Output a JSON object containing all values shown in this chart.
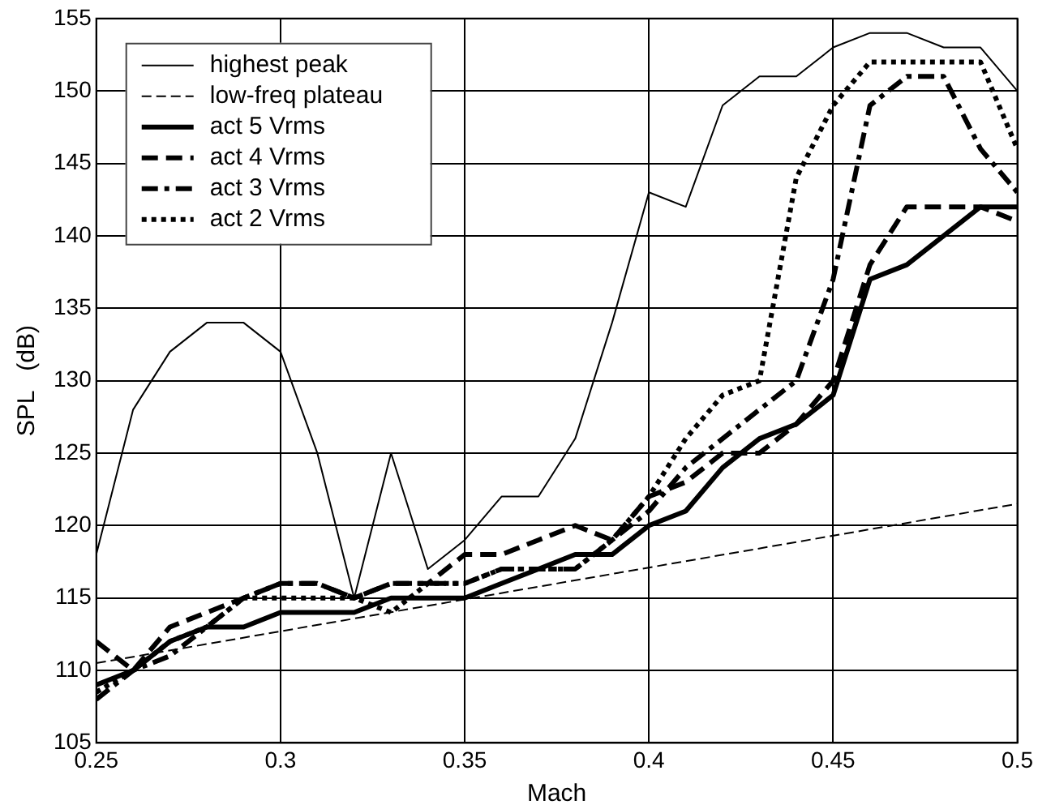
{
  "chart_data": {
    "type": "line",
    "xlabel": "Mach",
    "ylabel": "SPL   (dB)",
    "x": [
      0.25,
      0.26,
      0.27,
      0.28,
      0.29,
      0.3,
      0.31,
      0.32,
      0.33,
      0.34,
      0.35,
      0.36,
      0.37,
      0.38,
      0.39,
      0.4,
      0.41,
      0.42,
      0.43,
      0.44,
      0.45,
      0.46,
      0.47,
      0.48,
      0.49,
      0.5
    ],
    "xlim": [
      0.25,
      0.5
    ],
    "xticks": [
      0.25,
      0.3,
      0.35,
      0.4,
      0.45,
      0.5
    ],
    "ylim": [
      105,
      155
    ],
    "yticks": [
      105,
      110,
      115,
      120,
      125,
      130,
      135,
      140,
      145,
      150,
      155
    ],
    "grid": true,
    "legend": "top left",
    "marker": "none",
    "series": [
      {
        "name": "highest peak",
        "color": "#000000",
        "line_style": "solid",
        "values": [
          118,
          128,
          132,
          134,
          134,
          132,
          125,
          115,
          125,
          117,
          119,
          122,
          122,
          126,
          134,
          143,
          142,
          149,
          151,
          151,
          153,
          154,
          154,
          153,
          153,
          150
        ]
      },
      {
        "name": "low-freq plateau",
        "color": "#000000",
        "line_style": "dashed",
        "x": [
          0.25,
          0.5
        ],
        "values": [
          110.5,
          121.5
        ]
      },
      {
        "name": "act 5 Vrms",
        "color": "#000000",
        "line_style": "solid",
        "values": [
          109,
          110,
          112,
          113,
          113,
          114,
          114,
          114,
          115,
          115,
          115,
          116,
          117,
          118,
          118,
          120,
          121,
          124,
          126,
          127,
          129,
          137,
          138,
          140,
          142,
          142
        ]
      },
      {
        "name": "act 4 Vrms",
        "color": "#000000",
        "line_style": "dashed",
        "values": [
          112,
          110,
          113,
          114,
          115,
          116,
          116,
          115,
          116,
          116,
          118,
          118,
          119,
          120,
          119,
          122,
          123,
          125,
          125,
          127,
          130,
          138,
          142,
          142,
          142,
          141
        ]
      },
      {
        "name": "act 3 Vrms",
        "color": "#000000",
        "line_style": "dashdot",
        "values": [
          108,
          110,
          111,
          113,
          115,
          116,
          116,
          115,
          116,
          116,
          116,
          117,
          117,
          117,
          119,
          121,
          124,
          126,
          128,
          130,
          137,
          149,
          151,
          151,
          146,
          143
        ]
      },
      {
        "name": "act 2 Vrms",
        "color": "#000000",
        "line_style": "dotted",
        "values": [
          108.5,
          110,
          112,
          113,
          115,
          115,
          115,
          115,
          114,
          116,
          116,
          117,
          117,
          117,
          119,
          122,
          126,
          129,
          130,
          144,
          149,
          152,
          152,
          152,
          152,
          146
        ]
      }
    ]
  }
}
